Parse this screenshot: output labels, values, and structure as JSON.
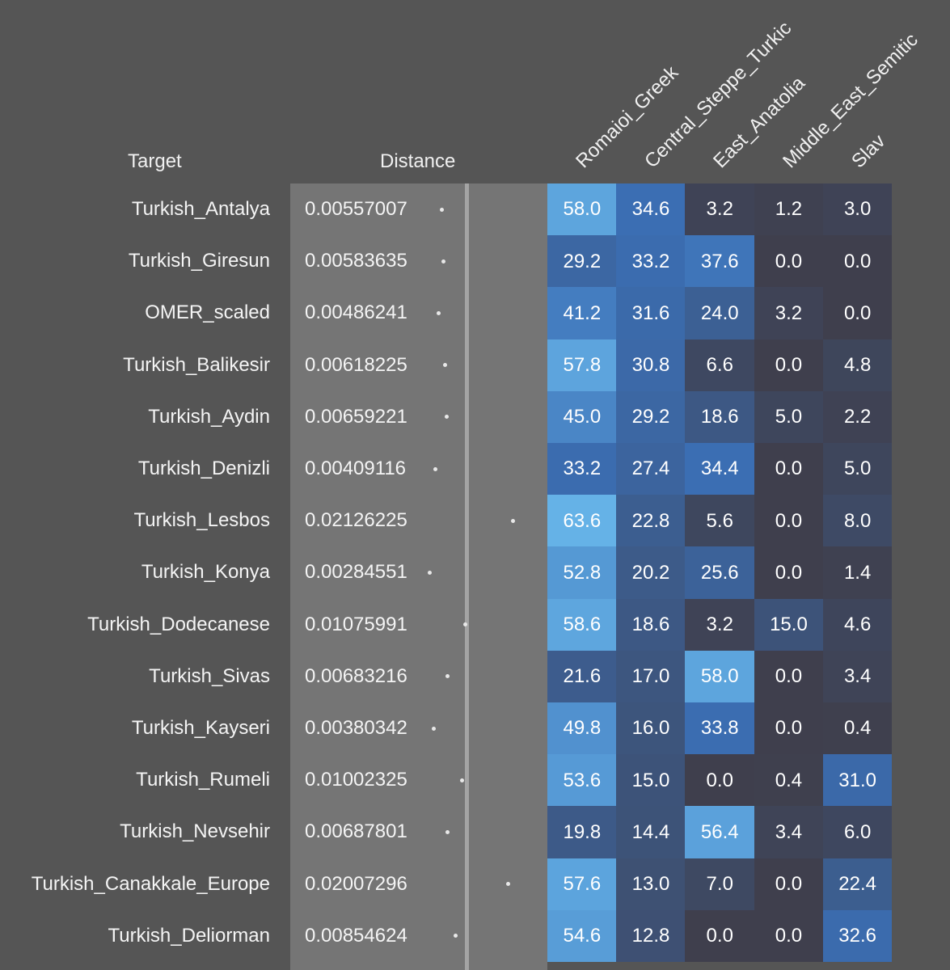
{
  "headers": {
    "target": "Target",
    "distance": "Distance"
  },
  "chart_data": {
    "type": "heatmap",
    "columns": [
      "Romaioi_Greek",
      "Central_Steppe_Turkic",
      "East_Anatolia",
      "Middle_East_Semitic",
      "Slav"
    ],
    "rows": [
      {
        "target": "Turkish_Antalya",
        "distance": "0.00557007",
        "values": [
          58.0,
          34.6,
          3.2,
          1.2,
          3.0
        ]
      },
      {
        "target": "Turkish_Giresun",
        "distance": "0.00583635",
        "values": [
          29.2,
          33.2,
          37.6,
          0.0,
          0.0
        ]
      },
      {
        "target": "OMER_scaled",
        "distance": "0.00486241",
        "values": [
          41.2,
          31.6,
          24.0,
          3.2,
          0.0
        ]
      },
      {
        "target": "Turkish_Balikesir",
        "distance": "0.00618225",
        "values": [
          57.8,
          30.8,
          6.6,
          0.0,
          4.8
        ]
      },
      {
        "target": "Turkish_Aydin",
        "distance": "0.00659221",
        "values": [
          45.0,
          29.2,
          18.6,
          5.0,
          2.2
        ]
      },
      {
        "target": "Turkish_Denizli",
        "distance": "0.00409116",
        "values": [
          33.2,
          27.4,
          34.4,
          0.0,
          5.0
        ]
      },
      {
        "target": "Turkish_Lesbos",
        "distance": "0.02126225",
        "values": [
          63.6,
          22.8,
          5.6,
          0.0,
          8.0
        ]
      },
      {
        "target": "Turkish_Konya",
        "distance": "0.00284551",
        "values": [
          52.8,
          20.2,
          25.6,
          0.0,
          1.4
        ]
      },
      {
        "target": "Turkish_Dodecanese",
        "distance": "0.01075991",
        "values": [
          58.6,
          18.6,
          3.2,
          15.0,
          4.6
        ]
      },
      {
        "target": "Turkish_Sivas",
        "distance": "0.00683216",
        "values": [
          21.6,
          17.0,
          58.0,
          0.0,
          3.4
        ]
      },
      {
        "target": "Turkish_Kayseri",
        "distance": "0.00380342",
        "values": [
          49.8,
          16.0,
          33.8,
          0.0,
          0.4
        ]
      },
      {
        "target": "Turkish_Rumeli",
        "distance": "0.01002325",
        "values": [
          53.6,
          15.0,
          0.0,
          0.4,
          31.0
        ]
      },
      {
        "target": "Turkish_Nevsehir",
        "distance": "0.00687801",
        "values": [
          19.8,
          14.4,
          56.4,
          3.4,
          6.0
        ]
      },
      {
        "target": "Turkish_Canakkale_Europe",
        "distance": "0.02007296",
        "values": [
          57.6,
          13.0,
          7.0,
          0.0,
          22.4
        ]
      },
      {
        "target": "Turkish_Deliorman",
        "distance": "0.00854624",
        "values": [
          54.6,
          12.8,
          0.0,
          0.0,
          32.6
        ]
      }
    ],
    "colors": {
      "low": "#3f3f4d",
      "mid": "#3b6fb5",
      "high": "#66b3e8",
      "background": "#555555",
      "distance_panel": "#757575"
    }
  }
}
